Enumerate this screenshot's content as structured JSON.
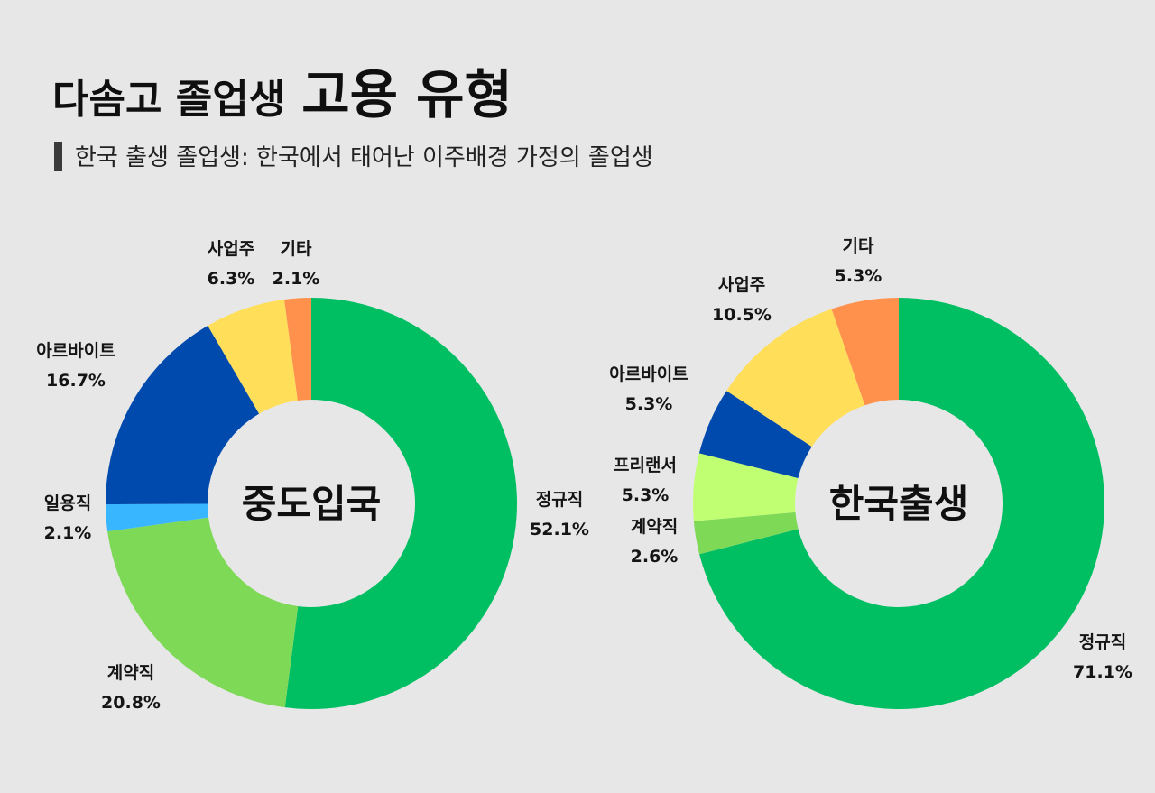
{
  "header": {
    "title_lead": "다솜고 졸업생",
    "title_emph": "고용 유형",
    "subtitle": "한국 출생 졸업생: 한국에서 태어난 이주배경 가정의 졸업생"
  },
  "colors": {
    "정규직": "#00bf63",
    "계약직": "#7ed957",
    "일용직": "#38b6ff",
    "아르바이트": "#004aad",
    "사업주": "#ffde59",
    "기타": "#ff914d",
    "프리랜서": "#c1ff72"
  },
  "chart_data": [
    {
      "type": "pie",
      "donut": true,
      "center_label": "중도입국",
      "slices": [
        {
          "label": "정규직",
          "value": 52.1,
          "text": "52.1%"
        },
        {
          "label": "계약직",
          "value": 20.8,
          "text": "20.8%"
        },
        {
          "label": "일용직",
          "value": 2.1,
          "text": "2.1%"
        },
        {
          "label": "아르바이트",
          "value": 16.7,
          "text": "16.7%"
        },
        {
          "label": "사업주",
          "value": 6.3,
          "text": "6.3%"
        },
        {
          "label": "기타",
          "value": 2.1,
          "text": "2.1%"
        }
      ]
    },
    {
      "type": "pie",
      "donut": true,
      "center_label": "한국출생",
      "slices": [
        {
          "label": "정규직",
          "value": 71.1,
          "text": "71.1%"
        },
        {
          "label": "계약직",
          "value": 2.6,
          "text": "2.6%"
        },
        {
          "label": "프리랜서",
          "value": 5.3,
          "text": "5.3%"
        },
        {
          "label": "아르바이트",
          "value": 5.3,
          "text": "5.3%"
        },
        {
          "label": "사업주",
          "value": 10.5,
          "text": "10.5%"
        },
        {
          "label": "기타",
          "value": 5.3,
          "text": "5.3%"
        }
      ]
    }
  ]
}
